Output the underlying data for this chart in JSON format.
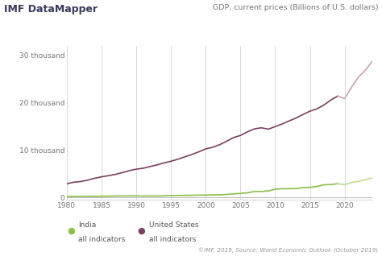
{
  "title_left": "IMF DataMapper",
  "title_right": "GDP, current prices (Billions of U.S. dollars)",
  "source": "©IMF, 2019, Source: World Economic Outlook (October 2019)",
  "years": [
    1980,
    1981,
    1982,
    1983,
    1984,
    1985,
    1986,
    1987,
    1988,
    1989,
    1990,
    1991,
    1992,
    1993,
    1994,
    1995,
    1996,
    1997,
    1998,
    1999,
    2000,
    2001,
    2002,
    2003,
    2004,
    2005,
    2006,
    2007,
    2008,
    2009,
    2010,
    2011,
    2012,
    2013,
    2014,
    2015,
    2016,
    2017,
    2018,
    2019,
    2020,
    2021,
    2022,
    2023,
    2024
  ],
  "us_gdp": [
    2857,
    3207,
    3343,
    3634,
    4037,
    4339,
    4579,
    4855,
    5236,
    5641,
    5963,
    6158,
    6520,
    6858,
    7287,
    7640,
    8073,
    8577,
    9063,
    9631,
    10251,
    10582,
    11143,
    11853,
    12647,
    13094,
    13856,
    14478,
    14719,
    14419,
    14964,
    15518,
    16163,
    16784,
    17527,
    18225,
    18715,
    19519,
    20580,
    21433,
    20893,
    23315,
    25463,
    26950,
    28781
  ],
  "india_gdp": [
    186,
    196,
    204,
    222,
    215,
    235,
    249,
    283,
    297,
    302,
    320,
    274,
    293,
    284,
    333,
    367,
    392,
    423,
    428,
    459,
    477,
    494,
    524,
    619,
    722,
    834,
    949,
    1239,
    1224,
    1365,
    1708,
    1823,
    1827,
    1857,
    2040,
    2104,
    2295,
    2651,
    2703,
    2870,
    2671,
    3150,
    3390,
    3730,
    4112
  ],
  "us_color": "#7d4060",
  "india_color": "#8abe4a",
  "us_color_light": "#c9a0b5",
  "india_color_light": "#c0dc96",
  "bg_color": "#ffffff",
  "grid_color": "#d8d8d8",
  "ytick_labels": [
    "0",
    "10 thousand",
    "20 thousand",
    "30 thousand"
  ],
  "ytick_values": [
    0,
    10000,
    20000,
    30000
  ],
  "ylim": [
    -500,
    32000
  ],
  "xlim": [
    1980,
    2024
  ],
  "split_year": 2019,
  "xticks": [
    1980,
    1985,
    1990,
    1995,
    2000,
    2005,
    2010,
    2015,
    2020
  ],
  "legend_india": "India\nall indicators",
  "legend_us": "United States\nall indicators"
}
